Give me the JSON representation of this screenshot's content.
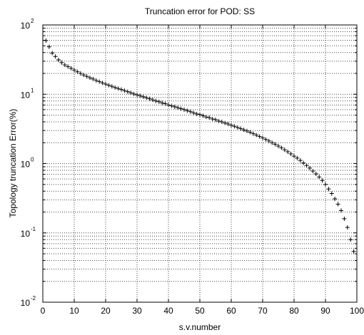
{
  "chart_data": {
    "type": "scatter",
    "title": "Truncation error for POD: SS",
    "xlabel": "s.v.number",
    "ylabel": "Topology truncation Error(%)",
    "xlim": [
      0,
      100
    ],
    "ylim": [
      0.01,
      100
    ],
    "yscale": "log",
    "x_ticks": [
      0,
      10,
      20,
      30,
      40,
      50,
      60,
      70,
      80,
      90,
      100
    ],
    "x_tick_labels": [
      "0",
      "10",
      "20",
      "30",
      "40",
      "50",
      "60",
      "70",
      "80",
      "90",
      "100"
    ],
    "y_ticks": [
      0.01,
      0.1,
      1,
      10,
      100
    ],
    "y_tick_labels": [
      {
        "base": "10",
        "exp": "-2"
      },
      {
        "base": "10",
        "exp": "-1"
      },
      {
        "base": "10",
        "exp": "0"
      },
      {
        "base": "10",
        "exp": "1"
      },
      {
        "base": "10",
        "exp": "2"
      }
    ],
    "grid": true,
    "marker": "+",
    "marker_color": "#000000",
    "series": [
      {
        "x": [
          1,
          2,
          3,
          4,
          5,
          6,
          7,
          8,
          9,
          10,
          11,
          12,
          13,
          14,
          15,
          16,
          17,
          18,
          19,
          20,
          21,
          22,
          23,
          24,
          25,
          26,
          27,
          28,
          29,
          30,
          31,
          32,
          33,
          34,
          35,
          36,
          37,
          38,
          39,
          40,
          41,
          42,
          43,
          44,
          45,
          46,
          47,
          48,
          49,
          50,
          51,
          52,
          53,
          54,
          55,
          56,
          57,
          58,
          59,
          60,
          61,
          62,
          63,
          64,
          65,
          66,
          67,
          68,
          69,
          70,
          71,
          72,
          73,
          74,
          75,
          76,
          77,
          78,
          79,
          80,
          81,
          82,
          83,
          84,
          85,
          86,
          87,
          88,
          89,
          90,
          91,
          92,
          93,
          94,
          95,
          96,
          97,
          98,
          99
        ],
        "y": [
          59.5,
          48.3,
          39.3,
          35.1,
          31.3,
          28.6,
          26.5,
          25.1,
          23.7,
          22.4,
          21.1,
          20.0,
          19.0,
          18.1,
          17.3,
          16.6,
          15.8,
          15.2,
          14.6,
          14.0,
          13.5,
          13.0,
          12.5,
          12.1,
          11.7,
          11.3,
          10.9,
          10.5,
          10.1,
          9.8,
          9.5,
          9.2,
          8.9,
          8.6,
          8.3,
          8.0,
          7.8,
          7.5,
          7.3,
          7.0,
          6.8,
          6.6,
          6.4,
          6.2,
          6.0,
          5.8,
          5.6,
          5.4,
          5.2,
          5.1,
          4.9,
          4.7,
          4.6,
          4.4,
          4.3,
          4.1,
          4.0,
          3.85,
          3.72,
          3.58,
          3.45,
          3.32,
          3.2,
          3.07,
          2.95,
          2.83,
          2.7,
          2.58,
          2.46,
          2.35,
          2.23,
          2.12,
          2.0,
          1.9,
          1.79,
          1.69,
          1.58,
          1.48,
          1.38,
          1.28,
          1.2,
          1.11,
          1.02,
          0.94,
          0.86,
          0.78,
          0.71,
          0.64,
          0.57,
          0.5,
          0.43,
          0.37,
          0.31,
          0.26,
          0.21,
          0.16,
          0.12,
          0.08,
          0.054
        ]
      }
    ]
  }
}
